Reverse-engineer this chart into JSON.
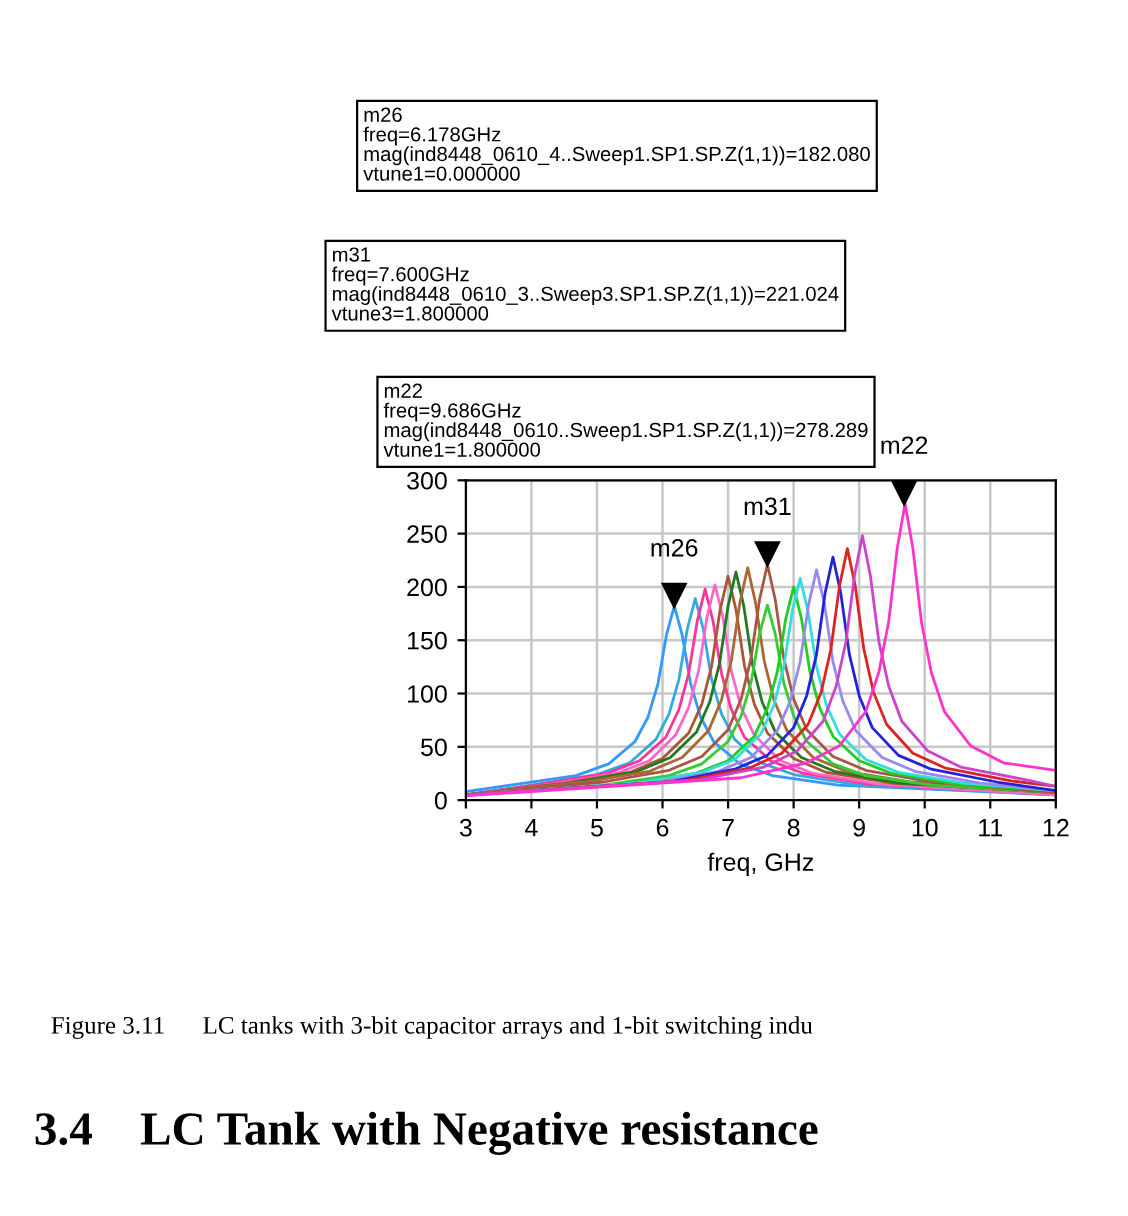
{
  "chart_data": {
    "type": "line",
    "xlabel": "freq, GHz",
    "xlim": [
      3,
      12
    ],
    "xticks": [
      3,
      4,
      5,
      6,
      7,
      8,
      9,
      10,
      11,
      12
    ],
    "ylim": [
      0,
      300
    ],
    "yticks": [
      0,
      50,
      100,
      150,
      200,
      250,
      300
    ],
    "grid": true,
    "marker": "none",
    "line_style": "solid",
    "series": [
      {
        "color": "#3399ff",
        "x": [
          3,
          3.68,
          4.68,
          5.18,
          5.58,
          5.78,
          5.93,
          6.06,
          6.18,
          6.3,
          6.43,
          6.58,
          6.78,
          7.18,
          7.68,
          8.68,
          12
        ],
        "values": [
          8,
          14,
          23,
          34,
          55,
          78,
          109,
          155,
          182,
          155,
          109,
          78,
          55,
          34,
          23,
          14,
          5
        ]
      },
      {
        "color": "#33aadd",
        "x": [
          3,
          4,
          5,
          5.5,
          5.9,
          6.1,
          6.25,
          6.38,
          6.5,
          6.62,
          6.75,
          6.9,
          7.1,
          7.5,
          8,
          9,
          12
        ],
        "values": [
          5,
          14,
          24,
          35,
          57,
          81,
          113,
          161,
          189,
          161,
          113,
          81,
          57,
          35,
          24,
          14,
          5
        ]
      },
      {
        "color": "#ff3399",
        "x": [
          3,
          4.15,
          5.15,
          5.65,
          6.05,
          6.25,
          6.4,
          6.53,
          6.65,
          6.77,
          6.9,
          7.05,
          7.25,
          7.65,
          8.15,
          9.15,
          12
        ],
        "values": [
          5,
          15,
          25,
          37,
          59,
          85,
          119,
          168,
          198,
          168,
          119,
          85,
          59,
          37,
          25,
          15,
          5
        ]
      },
      {
        "color": "#ff66cc",
        "x": [
          3,
          4.3,
          5.3,
          5.8,
          6.2,
          6.4,
          6.55,
          6.68,
          6.8,
          6.92,
          7.05,
          7.2,
          7.4,
          7.8,
          8.3,
          9.3,
          12
        ],
        "values": [
          5,
          15,
          25,
          37,
          61,
          87,
          121,
          172,
          202,
          172,
          121,
          87,
          61,
          37,
          25,
          15,
          5
        ]
      },
      {
        "color": "#aa5533",
        "x": [
          3,
          4.5,
          5.5,
          6,
          6.4,
          6.6,
          6.75,
          6.88,
          7,
          7.12,
          7.25,
          7.4,
          7.6,
          8,
          8.5,
          9.5,
          12
        ],
        "values": [
          5,
          16,
          26,
          39,
          63,
          90,
          126,
          179,
          210,
          179,
          126,
          90,
          63,
          39,
          26,
          16,
          7
        ]
      },
      {
        "color": "#227722",
        "x": [
          3,
          4.62,
          5.62,
          6.12,
          6.52,
          6.72,
          6.87,
          7,
          7.12,
          7.24,
          7.37,
          7.52,
          7.72,
          8.12,
          8.62,
          9.62,
          12
        ],
        "values": [
          5,
          16,
          27,
          40,
          64,
          92,
          128,
          182,
          214,
          182,
          128,
          92,
          64,
          40,
          27,
          16,
          7
        ]
      },
      {
        "color": "#aa6633",
        "x": [
          3,
          4.8,
          5.8,
          6.3,
          6.7,
          6.9,
          7.05,
          7.18,
          7.3,
          7.42,
          7.55,
          7.7,
          7.9,
          8.3,
          8.8,
          9.8,
          12
        ],
        "values": [
          5,
          17,
          27,
          40,
          65,
          94,
          131,
          185,
          218,
          185,
          131,
          94,
          65,
          40,
          27,
          17,
          7
        ]
      },
      {
        "color": "#33cc33",
        "x": [
          3,
          5.1,
          6.1,
          6.6,
          7,
          7.2,
          7.35,
          7.48,
          7.6,
          7.72,
          7.85,
          8,
          8.2,
          8.6,
          9.1,
          10.1,
          12
        ],
        "values": [
          5,
          14,
          23,
          34,
          55,
          79,
          110,
          156,
          183,
          156,
          110,
          79,
          55,
          34,
          23,
          14,
          7
        ]
      },
      {
        "color": "#aa5544",
        "x": [
          3,
          5.1,
          6.1,
          6.6,
          7,
          7.2,
          7.35,
          7.48,
          7.6,
          7.72,
          7.85,
          8,
          8.2,
          8.6,
          9.1,
          10.1,
          12
        ],
        "values": [
          5,
          17,
          28,
          41,
          66,
          95,
          133,
          188,
          221,
          188,
          133,
          95,
          66,
          41,
          28,
          17,
          7
        ]
      },
      {
        "color": "#22cc22",
        "x": [
          3,
          5.5,
          6.5,
          7,
          7.4,
          7.6,
          7.75,
          7.88,
          8,
          8.12,
          8.25,
          8.4,
          8.6,
          9,
          9.5,
          10.5,
          12
        ],
        "values": [
          5,
          15,
          25,
          37,
          60,
          86,
          120,
          170,
          200,
          170,
          120,
          86,
          60,
          37,
          25,
          15,
          9
        ]
      },
      {
        "color": "#33dddd",
        "x": [
          3,
          5.6,
          6.6,
          7.1,
          7.5,
          7.7,
          7.85,
          7.98,
          8.1,
          8.22,
          8.35,
          8.5,
          8.7,
          9.1,
          9.6,
          10.6,
          12
        ],
        "values": [
          5,
          16,
          26,
          38,
          62,
          89,
          125,
          177,
          208,
          177,
          125,
          89,
          62,
          38,
          26,
          16,
          9
        ]
      },
      {
        "color": "#9988ee",
        "x": [
          3,
          5.85,
          6.85,
          7.35,
          7.75,
          7.95,
          8.1,
          8.23,
          8.35,
          8.47,
          8.6,
          8.75,
          8.95,
          9.35,
          9.85,
          10.85,
          12
        ],
        "values": [
          5,
          16,
          27,
          40,
          65,
          93,
          130,
          184,
          216,
          184,
          130,
          93,
          65,
          40,
          27,
          16,
          9
        ]
      },
      {
        "color": "#2222dd",
        "x": [
          3,
          6.1,
          7.1,
          7.6,
          8,
          8.2,
          8.35,
          8.48,
          8.6,
          8.72,
          8.85,
          9,
          9.2,
          9.6,
          10.1,
          11.1,
          12
        ],
        "values": [
          5,
          17,
          29,
          42,
          68,
          98,
          137,
          194,
          228,
          194,
          137,
          98,
          68,
          42,
          29,
          17,
          9
        ]
      },
      {
        "color": "#dd2222",
        "x": [
          3,
          6.32,
          7.32,
          7.82,
          8.22,
          8.42,
          8.57,
          8.7,
          8.82,
          8.94,
          9.07,
          9.22,
          9.42,
          9.82,
          10.32,
          11.32,
          12
        ],
        "values": [
          5,
          18,
          30,
          44,
          71,
          101,
          142,
          201,
          236,
          201,
          142,
          101,
          71,
          44,
          30,
          18,
          13
        ]
      },
      {
        "color": "#cc44cc",
        "x": [
          3,
          6.55,
          7.55,
          8.05,
          8.45,
          8.65,
          8.8,
          8.93,
          9.05,
          9.17,
          9.3,
          9.45,
          9.65,
          10.05,
          10.55,
          11.55,
          12
        ],
        "values": [
          5,
          19,
          31,
          46,
          74,
          107,
          149,
          211,
          248,
          211,
          149,
          107,
          74,
          46,
          31,
          19,
          13
        ]
      },
      {
        "color": "#ff33cc",
        "x": [
          3,
          7.2,
          8.2,
          8.7,
          9.1,
          9.3,
          9.45,
          9.58,
          9.7,
          9.82,
          9.95,
          10.1,
          10.3,
          10.7,
          11.2,
          12
        ],
        "values": [
          4,
          21,
          35,
          51,
          83,
          120,
          167,
          236,
          278,
          236,
          167,
          120,
          83,
          51,
          35,
          28
        ]
      }
    ],
    "annotations": [
      "m26\nfreq=6.178GHz\nmag(ind8448_0610_4..Sweep1.SP1.SP.Z(1,1))=182.080\nvtune1=0.000000",
      "m31\nfreq=7.600GHz\nmag(ind8448_0610_3..Sweep3.SP1.SP.Z(1,1))=221.024\nvtune3=1.800000",
      "m22\nfreq=9.686GHz\nmag(ind8448_0610..Sweep1.SP1.SP.Z(1,1))=278.289\nvtune1=1.800000",
      "Figure 3.11      LC tanks with 3-bit capacitor arrays and 1-bit switching indu",
      "3.4    LC Tank with Negative resistance",
      {
        "text": "m26",
        "x": 6.178,
        "y": 182.08
      },
      {
        "text": "m31",
        "x": 7.6,
        "y": 221.024
      },
      {
        "text": "m22",
        "x": 9.686,
        "y": 278.289
      }
    ]
  }
}
